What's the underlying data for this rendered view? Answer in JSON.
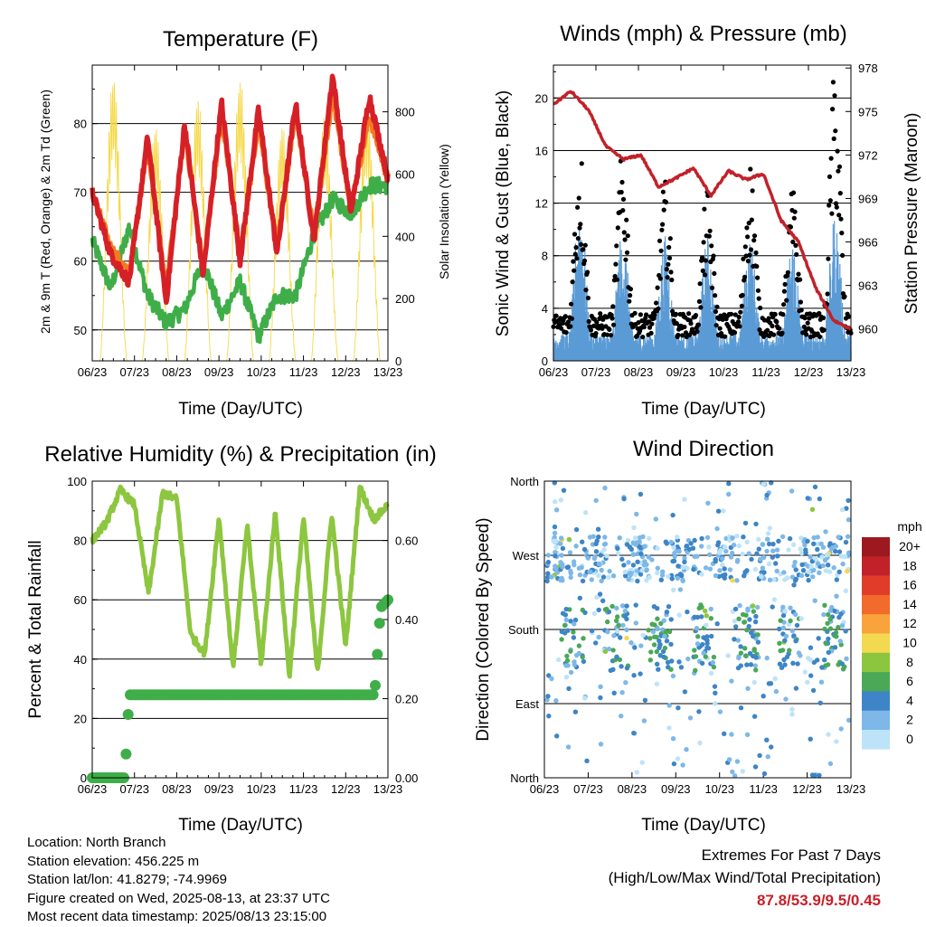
{
  "chart_data": [
    {
      "type": "line",
      "title": "Temperature (F)",
      "xlabel": "Time (Day/UTC)",
      "ylabel": "2m & 9m T (Red, Orange) & 2m Td (Green)",
      "ylabel_right": "Solar Insolation (Yellow)",
      "x_ticks": [
        "06/23",
        "07/23",
        "08/23",
        "09/23",
        "10/23",
        "11/23",
        "12/23",
        "13/23"
      ],
      "ylim": [
        45.5,
        88.5
      ],
      "y_ticks": [
        50,
        60,
        70,
        80
      ],
      "ylim_right": [
        0,
        950
      ],
      "y_ticks_right": [
        0,
        200,
        400,
        600,
        800
      ],
      "grid": "horizontal",
      "series": [
        {
          "color": "#d62027",
          "values": [
            70,
            61,
            57,
            78,
            54,
            80,
            58,
            83,
            60,
            82,
            61,
            83,
            63,
            87,
            67,
            84,
            72
          ]
        },
        {
          "color": "#f47a20",
          "values": [
            70,
            62,
            58,
            77,
            56,
            79,
            59,
            81,
            61,
            80,
            62,
            82,
            64,
            84,
            68,
            81,
            72
          ]
        },
        {
          "color": "#3fae49",
          "values": [
            63,
            56,
            65,
            55,
            51,
            53,
            60,
            52,
            57,
            49,
            55,
            55,
            64,
            69,
            67,
            71,
            71
          ]
        },
        {
          "color": "#f5d94c",
          "axis": "right",
          "peak_values": [
            920,
            760,
            850,
            910,
            760,
            800,
            830,
            900
          ]
        }
      ]
    },
    {
      "type": "line",
      "title": "Winds (mph) & Pressure (mb)",
      "xlabel": "Time (Day/UTC)",
      "ylabel": "Sonic Wind & Gust (Blue, Black)",
      "ylabel_right": "Station Pressure (Maroon)",
      "x_ticks": [
        "06/23",
        "07/23",
        "08/23",
        "09/23",
        "10/23",
        "11/23",
        "12/23",
        "13/23"
      ],
      "ylim": [
        0,
        22.5
      ],
      "y_ticks": [
        0,
        4,
        8,
        12,
        16,
        20
      ],
      "ylim_right": [
        957.8,
        978.2
      ],
      "y_ticks_right": [
        960,
        963,
        966,
        969,
        972,
        975,
        978
      ],
      "grid": "horizontal",
      "series": [
        {
          "color": "#c1222a",
          "axis": "right",
          "values": [
            975.5,
            976.4,
            975.1,
            972.6,
            971.7,
            972.0,
            969.8,
            970.4,
            971.1,
            969.2,
            970.9,
            970.3,
            970.7,
            967.5,
            966.0,
            962.8,
            960.6,
            960.0
          ]
        },
        {
          "color": "#5b9bd5",
          "peak_values": [
            10.5,
            8.5,
            8.0,
            8.0,
            8.0,
            8.0,
            9.5
          ]
        },
        {
          "color": "#000000",
          "peak_values": [
            15.0,
            14.5,
            12.5,
            12.0,
            14.0,
            12.0,
            20.5
          ]
        }
      ]
    },
    {
      "type": "line",
      "title": "Relative Humidity (%) & Precipitation (in)",
      "xlabel": "Time (Day/UTC)",
      "ylabel": "Percent & Total Rainfall",
      "x_ticks": [
        "06/23",
        "07/23",
        "08/23",
        "09/23",
        "10/23",
        "11/23",
        "12/23",
        "13/23"
      ],
      "ylim": [
        0,
        100
      ],
      "y_ticks": [
        0,
        20,
        40,
        60,
        80,
        100
      ],
      "ylim_right": [
        0,
        0.75
      ],
      "y_ticks_right": [
        "0.00",
        "0.20",
        "0.40",
        "0.60"
      ],
      "grid": "horizontal",
      "series": [
        {
          "color": "#8dc63f",
          "values": [
            80,
            86,
            97,
            92,
            62,
            96,
            94,
            48,
            42,
            88,
            37,
            85,
            38,
            90,
            34,
            88,
            35,
            89,
            44,
            98,
            87,
            92
          ]
        },
        {
          "color": "#3fae49",
          "axis": "right",
          "values": [
            0.0,
            0.0,
            0.0,
            0.03,
            0.13,
            0.21,
            0.21,
            0.21,
            0.22,
            0.3,
            0.43,
            0.45
          ]
        }
      ]
    },
    {
      "type": "scatter",
      "title": "Wind Direction",
      "xlabel": "Time (Day/UTC)",
      "ylabel": "Direction (Colored By Speed)",
      "x_ticks": [
        "06/23",
        "07/23",
        "08/23",
        "09/23",
        "10/23",
        "11/23",
        "12/23",
        "13/23"
      ],
      "y_ticks": [
        "North",
        "East",
        "South",
        "West",
        "North"
      ],
      "grid": "horizontal",
      "colorbar": {
        "title": "mph",
        "labels": [
          "20+",
          "18",
          "16",
          "14",
          "12",
          "10",
          "8",
          "6",
          "4",
          "2",
          "0"
        ],
        "colors": [
          "#9c1a1f",
          "#c1222a",
          "#e13b2a",
          "#f26a2c",
          "#f8a33c",
          "#f3d94f",
          "#8cc63e",
          "#4aa857",
          "#3d85c6",
          "#7db8e8",
          "#bde3f8"
        ]
      }
    }
  ],
  "station_info": {
    "location": "Location: North Branch",
    "elevation": "Station elevation: 456.225 m",
    "latlon": "Station lat/lon: 41.8279; -74.9969",
    "created": "Figure created on Wed, 2025-08-13, at 23:37 UTC",
    "recent": "Most recent data timestamp: 2025/08/13 23:15:00"
  },
  "extremes": {
    "heading": "Extremes For Past 7 Days",
    "subheading": "(High/Low/Max Wind/Total Precipitation)",
    "values": "87.8/53.9/9.5/0.45"
  }
}
